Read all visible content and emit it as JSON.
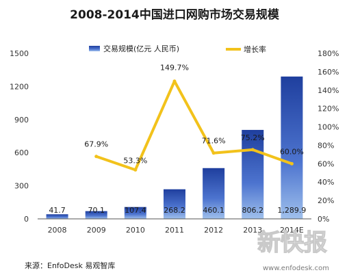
{
  "chart_data": {
    "type": "bar",
    "title": "2008-2014中国进口网购市场交易规模",
    "categories": [
      "2008",
      "2009",
      "2010",
      "2011",
      "2012",
      "2013",
      "2014E"
    ],
    "series": [
      {
        "name": "交易规模(亿元 人民币)",
        "type": "bar",
        "axis": "left",
        "color": "#2f55b8",
        "values": [
          41.7,
          70.1,
          107.4,
          268.2,
          460.1,
          806.2,
          1289.9
        ],
        "labels": [
          "41.7",
          "70.1",
          "107.4",
          "268.2",
          "460.1",
          "806.2",
          "1,289.9"
        ]
      },
      {
        "name": "增长率",
        "type": "line",
        "axis": "right",
        "color": "#f2c21b",
        "values": [
          null,
          67.9,
          53.3,
          149.7,
          71.6,
          75.2,
          60.0
        ],
        "labels": [
          "",
          "67.9%",
          "53.3%",
          "149.7%",
          "71.6%",
          "75.2%",
          "60.0%"
        ]
      }
    ],
    "left_axis": {
      "min": 0,
      "max": 1500,
      "ticks": [
        "0",
        "300",
        "600",
        "900",
        "1200",
        "1500"
      ]
    },
    "right_axis": {
      "min": 0,
      "max": 180,
      "ticks": [
        "0%",
        "20%",
        "40%",
        "60%",
        "80%",
        "100%",
        "120%",
        "140%",
        "160%",
        "180%"
      ]
    },
    "grid": false,
    "legend_position": "top"
  },
  "source": "来源：EnfoDesk 易观智库",
  "watermark": {
    "url": "www.enfodesk.com",
    "logo_text": "新快报"
  }
}
